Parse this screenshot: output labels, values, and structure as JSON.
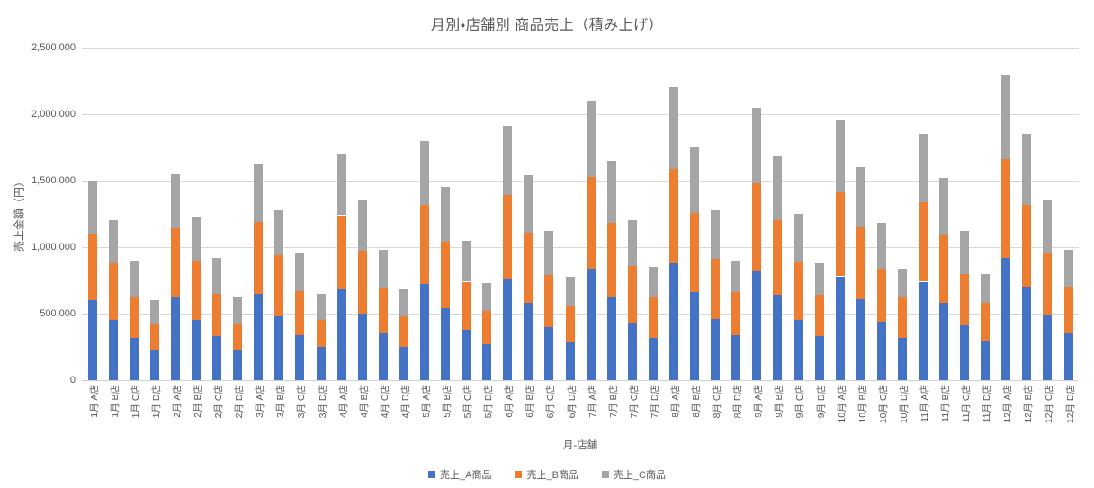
{
  "title": "月別・店舗別 商品売上（積み上げ）",
  "colors": {
    "series_a": "#4472C4",
    "series_b": "#ED7D31",
    "series_c": "#A5A5A5",
    "text": "#595959",
    "gridline": "#D9D9D9"
  },
  "y_axis": {
    "title": "売上金額（円）",
    "tick_labels": [
      "0",
      "500,000",
      "1,000,000",
      "1,500,000",
      "2,000,000",
      "2,500,000"
    ]
  },
  "x_axis": {
    "title": "月-店舗"
  },
  "legend": {
    "items": [
      "売上_A商品",
      "売上_B商品",
      "売上_C商品"
    ]
  },
  "chart_data": {
    "type": "bar",
    "stacked": true,
    "title": "月別・店舗別 商品売上（積み上げ）",
    "xlabel": "月-店舗",
    "ylabel": "売上金額（円）",
    "ylim": [
      0,
      2500000
    ],
    "ytick_step": 500000,
    "grid": true,
    "legend_position": "bottom",
    "categories": [
      "1月 A店",
      "1月 B店",
      "1月 C店",
      "1月 D店",
      "2月 A店",
      "2月 B店",
      "2月 C店",
      "2月 D店",
      "3月 A店",
      "3月 B店",
      "3月 C店",
      "3月 D店",
      "4月 A店",
      "4月 B店",
      "4月 C店",
      "4月 D店",
      "5月 A店",
      "5月 B店",
      "5月 C店",
      "5月 D店",
      "6月 A店",
      "6月 B店",
      "6月 C店",
      "6月 D店",
      "7月 A店",
      "7月 B店",
      "7月 C店",
      "7月 D店",
      "8月 A店",
      "8月 B店",
      "8月 C店",
      "8月 D店",
      "9月 A店",
      "9月 B店",
      "9月 C店",
      "9月 D店",
      "10月 A店",
      "10月 B店",
      "10月 C店",
      "10月 D店",
      "11月 A店",
      "11月 B店",
      "11月 C店",
      "11月 D店",
      "12月 A店",
      "12月 B店",
      "12月 C店",
      "12月 D店"
    ],
    "series": [
      {
        "name": "売上_A商品",
        "color": "#4472C4",
        "values": [
          600000,
          450000,
          320000,
          220000,
          620000,
          450000,
          330000,
          220000,
          650000,
          480000,
          340000,
          250000,
          680000,
          500000,
          350000,
          250000,
          720000,
          540000,
          380000,
          270000,
          760000,
          580000,
          400000,
          290000,
          840000,
          620000,
          430000,
          320000,
          880000,
          660000,
          460000,
          340000,
          820000,
          640000,
          450000,
          330000,
          780000,
          610000,
          440000,
          320000,
          740000,
          580000,
          410000,
          300000,
          920000,
          700000,
          490000,
          350000
        ]
      },
      {
        "name": "売上_B商品",
        "color": "#ED7D31",
        "values": [
          500000,
          430000,
          310000,
          200000,
          520000,
          450000,
          320000,
          200000,
          540000,
          460000,
          330000,
          200000,
          560000,
          470000,
          340000,
          230000,
          600000,
          500000,
          360000,
          250000,
          630000,
          530000,
          390000,
          270000,
          690000,
          560000,
          430000,
          310000,
          710000,
          600000,
          450000,
          320000,
          660000,
          560000,
          440000,
          310000,
          630000,
          540000,
          400000,
          300000,
          600000,
          510000,
          390000,
          280000,
          740000,
          620000,
          470000,
          350000
        ]
      },
      {
        "name": "売上_C商品",
        "color": "#A5A5A5",
        "values": [
          400000,
          320000,
          270000,
          180000,
          410000,
          320000,
          270000,
          200000,
          430000,
          340000,
          280000,
          200000,
          460000,
          380000,
          290000,
          200000,
          480000,
          410000,
          310000,
          210000,
          520000,
          430000,
          330000,
          220000,
          570000,
          470000,
          340000,
          220000,
          610000,
          490000,
          370000,
          240000,
          570000,
          480000,
          360000,
          240000,
          540000,
          450000,
          340000,
          220000,
          510000,
          430000,
          320000,
          220000,
          640000,
          530000,
          390000,
          280000
        ]
      }
    ]
  }
}
